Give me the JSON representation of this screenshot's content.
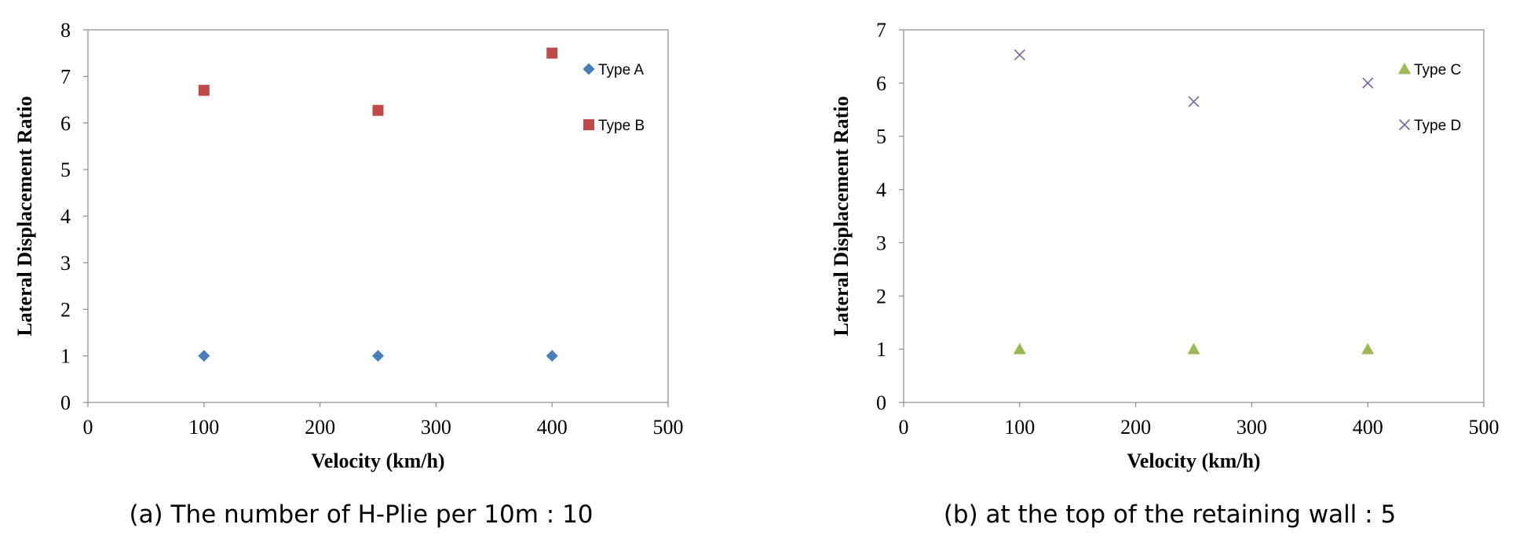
{
  "chart_data": [
    {
      "type": "scatter",
      "caption": "(a) The number of H-Plie per 10m : 10",
      "xlabel": "Velocity (km/h)",
      "ylabel": "Lateral Displacement Ratio",
      "xlim": [
        0,
        500
      ],
      "ylim": [
        0,
        8
      ],
      "xticks": [
        "0",
        "100",
        "200",
        "300",
        "400",
        "500"
      ],
      "yticks": [
        "0",
        "1",
        "2",
        "3",
        "4",
        "5",
        "6",
        "7",
        "8"
      ],
      "grid": false,
      "legend_position": "right",
      "series": [
        {
          "name": "Type A",
          "marker": "diamond",
          "color": "#4A7EBB",
          "x": [
            100,
            250,
            400
          ],
          "y": [
            1.0,
            1.0,
            1.0
          ]
        },
        {
          "name": "Type B",
          "marker": "square",
          "color": "#BE4B48",
          "x": [
            100,
            250,
            400
          ],
          "y": [
            6.7,
            6.27,
            7.5
          ]
        }
      ]
    },
    {
      "type": "scatter",
      "caption": "(b) at the top of the retaining wall : 5",
      "xlabel": "Velocity (km/h)",
      "ylabel": "Lateral Displacement Ratio",
      "xlim": [
        0,
        500
      ],
      "ylim": [
        0,
        7
      ],
      "xticks": [
        "0",
        "100",
        "200",
        "300",
        "400",
        "500"
      ],
      "yticks": [
        "0",
        "1",
        "2",
        "3",
        "4",
        "5",
        "6",
        "7"
      ],
      "grid": false,
      "legend_position": "right",
      "series": [
        {
          "name": "Type C",
          "marker": "triangle",
          "color": "#98B954",
          "x": [
            100,
            250,
            400
          ],
          "y": [
            1.0,
            1.0,
            1.0
          ]
        },
        {
          "name": "Type D",
          "marker": "x",
          "color": "#7D60A0",
          "x": [
            100,
            250,
            400
          ],
          "y": [
            6.53,
            5.65,
            6.0
          ]
        }
      ]
    }
  ]
}
